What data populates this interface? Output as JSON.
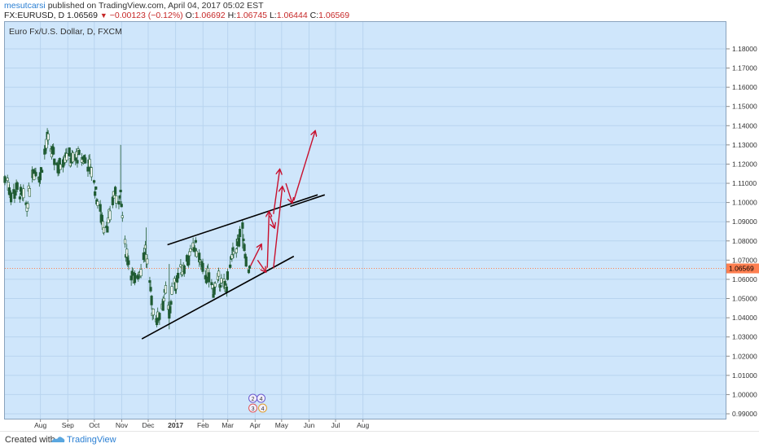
{
  "header": {
    "publisher": "mesutcarsi",
    "published_text": "published on TradingView.com, April 04, 2017 05:02 EST",
    "symbol": "FX:EURUSD, D",
    "last": "1.06569",
    "change": "−0.00123 (−0.12%)",
    "o_label": "O:",
    "o": "1.06692",
    "h_label": "H:",
    "h": "1.06745",
    "l_label": "L:",
    "l": "1.06444",
    "c_label": "C:",
    "c": "1.06569"
  },
  "chart_title": "Euro Fx/U.S. Dollar, D, FXCM",
  "footer": {
    "created_with": "Created with",
    "brand": "TradingView"
  },
  "colors": {
    "up": "#ffffff",
    "down": "#1f5b33",
    "arrow": "#c8102e",
    "pane_bg": "#cfe6fb",
    "price_tag": "#ff7f50"
  },
  "chart_data": {
    "type": "candlestick",
    "symbol": "EURUSD",
    "timeframe": "D",
    "ylim": [
      0.985,
      1.19
    ],
    "y_ticks": [
      "1.18000",
      "1.17000",
      "1.16000",
      "1.15000",
      "1.14000",
      "1.13000",
      "1.12000",
      "1.11000",
      "1.10000",
      "1.09000",
      "1.08000",
      "1.07000",
      "1.06000",
      "1.05000",
      "1.04000",
      "1.03000",
      "1.02000",
      "1.01000",
      "1.00000",
      "0.99000"
    ],
    "x_ticks": [
      "Aug",
      "Sep",
      "Oct",
      "Nov",
      "Dec",
      "2017",
      "Feb",
      "Mar",
      "Apr",
      "May",
      "Jun",
      "Jul",
      "Aug"
    ],
    "current_price": "1.06569",
    "price_anchors": [
      [
        "2016-07-04",
        1.112
      ],
      [
        "2016-07-08",
        1.103
      ],
      [
        "2016-07-15",
        1.107
      ],
      [
        "2016-07-22",
        1.102
      ],
      [
        "2016-07-26",
        1.098
      ],
      [
        "2016-08-01",
        1.117
      ],
      [
        "2016-08-10",
        1.114
      ],
      [
        "2016-08-18",
        1.133
      ],
      [
        "2016-08-24",
        1.125
      ],
      [
        "2016-08-31",
        1.118
      ],
      [
        "2016-09-08",
        1.126
      ],
      [
        "2016-09-15",
        1.122
      ],
      [
        "2016-09-22",
        1.124
      ],
      [
        "2016-09-30",
        1.122
      ],
      [
        "2016-10-07",
        1.117
      ],
      [
        "2016-10-14",
        1.1
      ],
      [
        "2016-10-21",
        1.088
      ],
      [
        "2016-10-26",
        1.089
      ],
      [
        "2016-11-01",
        1.104
      ],
      [
        "2016-11-08",
        1.102
      ],
      [
        "2016-11-09",
        1.103
      ],
      [
        "2016-11-14",
        1.077
      ],
      [
        "2016-11-24",
        1.058
      ],
      [
        "2016-12-02",
        1.066
      ],
      [
        "2016-12-07",
        1.076
      ],
      [
        "2016-12-15",
        1.044
      ],
      [
        "2016-12-21",
        1.039
      ],
      [
        "2016-12-30",
        1.053
      ],
      [
        "2017-01-03",
        1.041
      ],
      [
        "2017-01-06",
        1.053
      ],
      [
        "2017-01-13",
        1.062
      ],
      [
        "2017-01-19",
        1.067
      ],
      [
        "2017-01-26",
        1.072
      ],
      [
        "2017-02-02",
        1.077
      ],
      [
        "2017-02-10",
        1.064
      ],
      [
        "2017-02-17",
        1.061
      ],
      [
        "2017-02-22",
        1.054
      ],
      [
        "2017-02-28",
        1.06
      ],
      [
        "2017-03-08",
        1.055
      ],
      [
        "2017-03-16",
        1.073
      ],
      [
        "2017-03-23",
        1.08
      ],
      [
        "2017-03-27",
        1.086
      ],
      [
        "2017-03-30",
        1.07
      ],
      [
        "2017-04-04",
        1.0657
      ]
    ],
    "spikes": [
      {
        "date": "2016-11-09",
        "high": 1.13,
        "low": 1.098
      },
      {
        "date": "2016-12-08",
        "high": 1.087,
        "low": 1.066
      },
      {
        "date": "2017-01-03",
        "high": 1.068,
        "low": 1.034
      },
      {
        "date": "2017-03-27",
        "high": 1.091,
        "low": 1.076
      }
    ],
    "drawings": {
      "channel_upper": [
        [
          "2017-01-01",
          1.078
        ],
        [
          "2017-06-20",
          1.104
        ]
      ],
      "channel_lower": [
        [
          "2016-12-03",
          1.029
        ],
        [
          "2017-05-24",
          1.072
        ]
      ],
      "channel_upper_right": [
        [
          "2017-05-20",
          1.098
        ],
        [
          "2017-06-28",
          1.104
        ]
      ],
      "arrows": [
        [
          [
            "2017-04-05",
            1.067
          ],
          [
            "2017-04-17",
            1.078
          ]
        ],
        [
          [
            "2017-04-13",
            1.07
          ],
          [
            "2017-04-22",
            1.064
          ]
        ],
        [
          [
            "2017-04-24",
            1.066
          ],
          [
            "2017-04-26",
            1.095
          ]
        ],
        [
          [
            "2017-04-27",
            1.093
          ],
          [
            "2017-05-02",
            1.087
          ]
        ],
        [
          [
            "2017-05-01",
            1.094
          ],
          [
            "2017-05-08",
            1.117
          ]
        ],
        [
          [
            "2017-05-01",
            1.066
          ],
          [
            "2017-05-11",
            1.108
          ]
        ],
        [
          [
            "2017-05-15",
            1.11
          ],
          [
            "2017-05-22",
            1.1
          ]
        ],
        [
          [
            "2017-05-24",
            1.101
          ],
          [
            "2017-06-17",
            1.137
          ]
        ]
      ]
    },
    "event_markers": [
      {
        "date": "2017-04-04",
        "labels": [
          "2",
          "4",
          "3",
          "4"
        ]
      }
    ]
  }
}
